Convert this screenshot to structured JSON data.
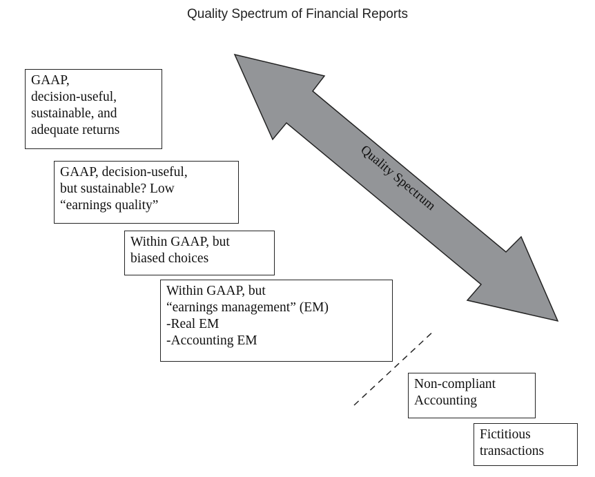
{
  "title": "Quality Spectrum of Financial Reports",
  "arrow": {
    "label": "Quality Spectrum",
    "fill": "#939598",
    "stroke": "#222222"
  },
  "boxes": [
    {
      "lines": [
        "GAAP,",
        "decision-useful,",
        "sustainable, and",
        "adequate returns"
      ]
    },
    {
      "lines": [
        "GAAP, decision-useful,",
        "but sustainable? Low",
        "“earnings quality”"
      ]
    },
    {
      "lines": [
        "Within GAAP, but",
        "biased choices"
      ]
    },
    {
      "lines": [
        "Within GAAP, but",
        "“earnings management” (EM)",
        "-Real EM",
        "-Accounting EM"
      ]
    },
    {
      "lines": [
        "Non-compliant",
        "Accounting"
      ]
    },
    {
      "lines": [
        "Fictitious",
        "transactions"
      ]
    }
  ]
}
